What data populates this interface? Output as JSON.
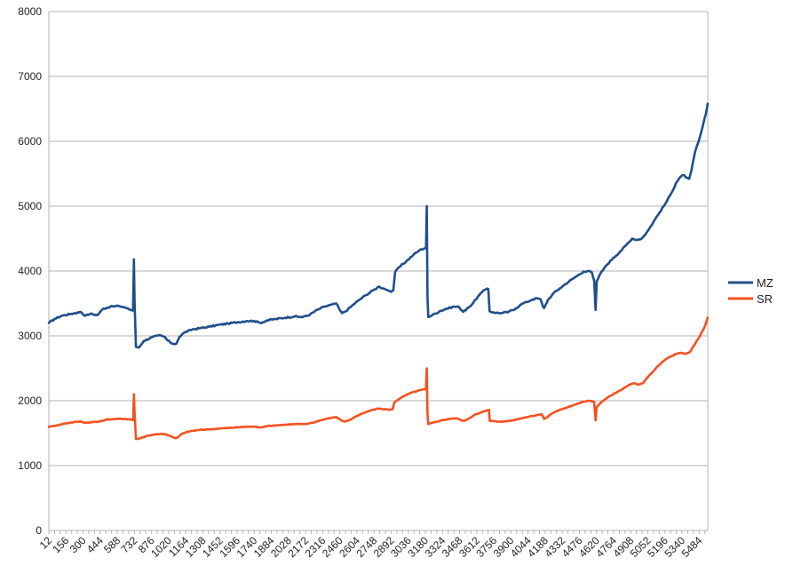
{
  "chart_data": {
    "type": "line",
    "title": "",
    "xlabel": "",
    "ylabel": "",
    "ylim": [
      0,
      8000
    ],
    "xlim": [
      12,
      5556
    ],
    "yticks": [
      0,
      1000,
      2000,
      3000,
      4000,
      5000,
      6000,
      7000,
      8000
    ],
    "xticks": [
      12,
      156,
      300,
      444,
      588,
      732,
      876,
      1020,
      1164,
      1308,
      1452,
      1596,
      1740,
      1884,
      2028,
      2172,
      2316,
      2460,
      2604,
      2748,
      2892,
      3036,
      3180,
      3324,
      3468,
      3612,
      3756,
      3900,
      4044,
      4188,
      4332,
      4476,
      4620,
      4764,
      4908,
      5052,
      5196,
      5340,
      5484
    ],
    "grid": true,
    "legend": "right",
    "series": [
      {
        "name": "MZ",
        "color": "#1f4e8c",
        "points": [
          [
            12,
            3200
          ],
          [
            60,
            3260
          ],
          [
            120,
            3310
          ],
          [
            200,
            3340
          ],
          [
            280,
            3370
          ],
          [
            320,
            3310
          ],
          [
            360,
            3340
          ],
          [
            420,
            3320
          ],
          [
            470,
            3420
          ],
          [
            530,
            3450
          ],
          [
            600,
            3460
          ],
          [
            650,
            3440
          ],
          [
            700,
            3400
          ],
          [
            720,
            3390
          ],
          [
            728,
            4180
          ],
          [
            734,
            3500
          ],
          [
            745,
            2830
          ],
          [
            770,
            2820
          ],
          [
            810,
            2920
          ],
          [
            880,
            2980
          ],
          [
            950,
            3010
          ],
          [
            990,
            2980
          ],
          [
            1010,
            2930
          ],
          [
            1050,
            2880
          ],
          [
            1085,
            2880
          ],
          [
            1110,
            2980
          ],
          [
            1150,
            3050
          ],
          [
            1220,
            3100
          ],
          [
            1290,
            3120
          ],
          [
            1360,
            3140
          ],
          [
            1440,
            3170
          ],
          [
            1520,
            3190
          ],
          [
            1600,
            3210
          ],
          [
            1680,
            3230
          ],
          [
            1740,
            3230
          ],
          [
            1790,
            3200
          ],
          [
            1850,
            3240
          ],
          [
            1920,
            3260
          ],
          [
            2000,
            3280
          ],
          [
            2080,
            3300
          ],
          [
            2150,
            3290
          ],
          [
            2210,
            3330
          ],
          [
            2270,
            3400
          ],
          [
            2330,
            3450
          ],
          [
            2390,
            3480
          ],
          [
            2430,
            3500
          ],
          [
            2460,
            3400
          ],
          [
            2480,
            3350
          ],
          [
            2510,
            3380
          ],
          [
            2560,
            3460
          ],
          [
            2620,
            3550
          ],
          [
            2680,
            3630
          ],
          [
            2740,
            3700
          ],
          [
            2790,
            3760
          ],
          [
            2830,
            3730
          ],
          [
            2870,
            3700
          ],
          [
            2890,
            3680
          ],
          [
            2910,
            3700
          ],
          [
            2925,
            3980
          ],
          [
            2960,
            4060
          ],
          [
            3020,
            4150
          ],
          [
            3080,
            4250
          ],
          [
            3130,
            4320
          ],
          [
            3170,
            4350
          ],
          [
            3185,
            4350
          ],
          [
            3192,
            5000
          ],
          [
            3198,
            3600
          ],
          [
            3205,
            3290
          ],
          [
            3240,
            3320
          ],
          [
            3300,
            3380
          ],
          [
            3360,
            3420
          ],
          [
            3420,
            3450
          ],
          [
            3460,
            3450
          ],
          [
            3480,
            3400
          ],
          [
            3500,
            3370
          ],
          [
            3530,
            3420
          ],
          [
            3570,
            3480
          ],
          [
            3620,
            3600
          ],
          [
            3660,
            3680
          ],
          [
            3700,
            3730
          ],
          [
            3710,
            3720
          ],
          [
            3720,
            3380
          ],
          [
            3760,
            3360
          ],
          [
            3820,
            3350
          ],
          [
            3880,
            3370
          ],
          [
            3940,
            3420
          ],
          [
            3980,
            3480
          ],
          [
            4030,
            3520
          ],
          [
            4080,
            3560
          ],
          [
            4120,
            3580
          ],
          [
            4150,
            3560
          ],
          [
            4170,
            3450
          ],
          [
            4180,
            3430
          ],
          [
            4210,
            3550
          ],
          [
            4260,
            3660
          ],
          [
            4310,
            3730
          ],
          [
            4360,
            3800
          ],
          [
            4420,
            3880
          ],
          [
            4470,
            3940
          ],
          [
            4510,
            3990
          ],
          [
            4550,
            4000
          ],
          [
            4580,
            3980
          ],
          [
            4600,
            3850
          ],
          [
            4612,
            3400
          ],
          [
            4622,
            3840
          ],
          [
            4650,
            3950
          ],
          [
            4700,
            4080
          ],
          [
            4760,
            4200
          ],
          [
            4820,
            4300
          ],
          [
            4880,
            4420
          ],
          [
            4920,
            4500
          ],
          [
            4960,
            4480
          ],
          [
            5000,
            4500
          ],
          [
            5020,
            4540
          ],
          [
            5060,
            4640
          ],
          [
            5100,
            4760
          ],
          [
            5150,
            4900
          ],
          [
            5200,
            5040
          ],
          [
            5250,
            5200
          ],
          [
            5290,
            5360
          ],
          [
            5320,
            5440
          ],
          [
            5350,
            5480
          ],
          [
            5380,
            5440
          ],
          [
            5400,
            5420
          ],
          [
            5420,
            5560
          ],
          [
            5450,
            5840
          ],
          [
            5480,
            6000
          ],
          [
            5510,
            6200
          ],
          [
            5540,
            6420
          ],
          [
            5556,
            6580
          ]
        ]
      },
      {
        "name": "SR",
        "color": "#f4511e",
        "points": [
          [
            12,
            1600
          ],
          [
            80,
            1620
          ],
          [
            150,
            1650
          ],
          [
            220,
            1670
          ],
          [
            280,
            1680
          ],
          [
            320,
            1660
          ],
          [
            380,
            1670
          ],
          [
            440,
            1680
          ],
          [
            500,
            1710
          ],
          [
            580,
            1720
          ],
          [
            650,
            1720
          ],
          [
            710,
            1710
          ],
          [
            722,
            1700
          ],
          [
            728,
            2100
          ],
          [
            734,
            1800
          ],
          [
            745,
            1410
          ],
          [
            780,
            1420
          ],
          [
            840,
            1460
          ],
          [
            900,
            1480
          ],
          [
            960,
            1490
          ],
          [
            1000,
            1480
          ],
          [
            1040,
            1450
          ],
          [
            1080,
            1420
          ],
          [
            1100,
            1440
          ],
          [
            1140,
            1500
          ],
          [
            1200,
            1530
          ],
          [
            1280,
            1550
          ],
          [
            1360,
            1560
          ],
          [
            1440,
            1570
          ],
          [
            1520,
            1580
          ],
          [
            1600,
            1590
          ],
          [
            1680,
            1600
          ],
          [
            1740,
            1600
          ],
          [
            1790,
            1590
          ],
          [
            1850,
            1610
          ],
          [
            1920,
            1620
          ],
          [
            2000,
            1630
          ],
          [
            2080,
            1640
          ],
          [
            2160,
            1640
          ],
          [
            2230,
            1660
          ],
          [
            2300,
            1700
          ],
          [
            2370,
            1730
          ],
          [
            2430,
            1750
          ],
          [
            2470,
            1700
          ],
          [
            2500,
            1680
          ],
          [
            2540,
            1700
          ],
          [
            2600,
            1760
          ],
          [
            2660,
            1810
          ],
          [
            2720,
            1850
          ],
          [
            2780,
            1880
          ],
          [
            2830,
            1870
          ],
          [
            2880,
            1860
          ],
          [
            2905,
            1870
          ],
          [
            2920,
            1980
          ],
          [
            2970,
            2040
          ],
          [
            3030,
            2100
          ],
          [
            3090,
            2140
          ],
          [
            3150,
            2170
          ],
          [
            3185,
            2180
          ],
          [
            3192,
            2500
          ],
          [
            3198,
            1800
          ],
          [
            3205,
            1640
          ],
          [
            3260,
            1670
          ],
          [
            3320,
            1700
          ],
          [
            3380,
            1720
          ],
          [
            3440,
            1730
          ],
          [
            3480,
            1700
          ],
          [
            3510,
            1690
          ],
          [
            3550,
            1730
          ],
          [
            3600,
            1790
          ],
          [
            3650,
            1820
          ],
          [
            3700,
            1850
          ],
          [
            3715,
            1860
          ],
          [
            3722,
            1690
          ],
          [
            3780,
            1680
          ],
          [
            3850,
            1680
          ],
          [
            3920,
            1700
          ],
          [
            3990,
            1730
          ],
          [
            4060,
            1760
          ],
          [
            4120,
            1780
          ],
          [
            4160,
            1790
          ],
          [
            4180,
            1720
          ],
          [
            4200,
            1740
          ],
          [
            4250,
            1810
          ],
          [
            4310,
            1860
          ],
          [
            4380,
            1900
          ],
          [
            4440,
            1940
          ],
          [
            4500,
            1980
          ],
          [
            4560,
            2000
          ],
          [
            4600,
            1980
          ],
          [
            4612,
            1700
          ],
          [
            4622,
            1900
          ],
          [
            4660,
            1980
          ],
          [
            4720,
            2060
          ],
          [
            4780,
            2120
          ],
          [
            4840,
            2180
          ],
          [
            4890,
            2240
          ],
          [
            4930,
            2270
          ],
          [
            4970,
            2250
          ],
          [
            5010,
            2270
          ],
          [
            5040,
            2340
          ],
          [
            5090,
            2440
          ],
          [
            5140,
            2540
          ],
          [
            5190,
            2620
          ],
          [
            5240,
            2680
          ],
          [
            5290,
            2720
          ],
          [
            5330,
            2740
          ],
          [
            5370,
            2720
          ],
          [
            5410,
            2760
          ],
          [
            5450,
            2880
          ],
          [
            5490,
            3000
          ],
          [
            5530,
            3140
          ],
          [
            5556,
            3280
          ]
        ]
      }
    ]
  }
}
